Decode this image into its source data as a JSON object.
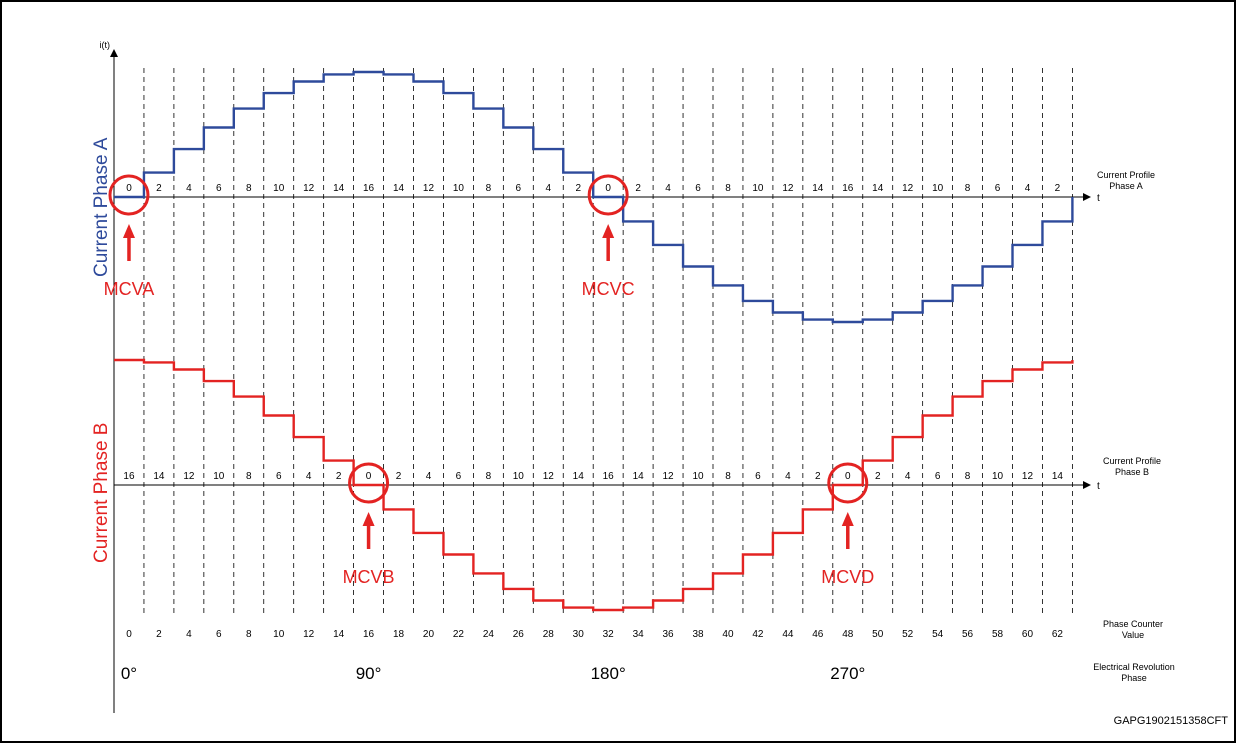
{
  "axes": {
    "y_label": "i(t)",
    "t_label": "t"
  },
  "phase_a": {
    "title": "Current Phase A",
    "profile_label_line1": "Current Profile",
    "profile_label_line2": "Phase A",
    "color": "#2e4a9b",
    "markers": [
      {
        "label": "MCVA",
        "step": 0
      },
      {
        "label": "MCVC",
        "step": 16
      }
    ]
  },
  "phase_b": {
    "title": "Current Phase B",
    "profile_label_line1": "Current Profile",
    "profile_label_line2": "Phase B",
    "color": "#e32322",
    "markers": [
      {
        "label": "MCVB",
        "step": 8
      },
      {
        "label": "MCVD",
        "step": 24
      }
    ]
  },
  "phase_counter": {
    "label_line1": "Phase Counter",
    "label_line2": "Value",
    "values": [
      "0",
      "2",
      "4",
      "6",
      "8",
      "10",
      "12",
      "14",
      "16",
      "18",
      "20",
      "22",
      "24",
      "26",
      "28",
      "30",
      "32",
      "34",
      "36",
      "38",
      "40",
      "42",
      "44",
      "46",
      "48",
      "50",
      "52",
      "54",
      "56",
      "58",
      "60",
      "62"
    ]
  },
  "electrical_phase": {
    "label_line1": "Electrical Revolution",
    "label_line2": "Phase",
    "angles": [
      {
        "label": "0°",
        "step": 0
      },
      {
        "label": "90°",
        "step": 8
      },
      {
        "label": "180°",
        "step": 16
      },
      {
        "label": "270°",
        "step": 24
      }
    ]
  },
  "chart_data": {
    "type": "line",
    "x": [
      0,
      2,
      4,
      6,
      8,
      10,
      12,
      14,
      16,
      18,
      20,
      22,
      24,
      26,
      28,
      30,
      32,
      34,
      36,
      38,
      40,
      42,
      44,
      46,
      48,
      50,
      52,
      54,
      56,
      58,
      60,
      62
    ],
    "series": [
      {
        "name": "Current Phase A",
        "values": [
          0,
          0.195,
          0.383,
          0.556,
          0.707,
          0.831,
          0.924,
          0.981,
          1,
          0.981,
          0.924,
          0.831,
          0.707,
          0.556,
          0.383,
          0.195,
          0,
          -0.195,
          -0.383,
          -0.556,
          -0.707,
          -0.831,
          -0.924,
          -0.981,
          -1,
          -0.981,
          -0.924,
          -0.831,
          -0.707,
          -0.556,
          -0.383,
          -0.195
        ],
        "step_labels": [
          "0",
          "2",
          "4",
          "6",
          "8",
          "10",
          "12",
          "14",
          "16",
          "14",
          "12",
          "10",
          "8",
          "6",
          "4",
          "2",
          "0",
          "2",
          "4",
          "6",
          "8",
          "10",
          "12",
          "14",
          "16",
          "14",
          "12",
          "10",
          "8",
          "6",
          "4",
          "2"
        ]
      },
      {
        "name": "Current Phase B",
        "values": [
          1,
          0.981,
          0.924,
          0.831,
          0.707,
          0.556,
          0.383,
          0.195,
          0,
          -0.195,
          -0.383,
          -0.556,
          -0.707,
          -0.831,
          -0.924,
          -0.981,
          -1,
          -0.981,
          -0.924,
          -0.831,
          -0.707,
          -0.556,
          -0.383,
          -0.195,
          0,
          0.195,
          0.383,
          0.556,
          0.707,
          0.831,
          0.924,
          0.981
        ],
        "step_labels": [
          "16",
          "14",
          "12",
          "10",
          "8",
          "6",
          "4",
          "2",
          "0",
          "2",
          "4",
          "6",
          "8",
          "10",
          "12",
          "14",
          "16",
          "14",
          "12",
          "10",
          "8",
          "6",
          "4",
          "2",
          "0",
          "2",
          "4",
          "6",
          "8",
          "10",
          "12",
          "14"
        ]
      }
    ]
  },
  "figure_code": "GAPG1902151358CFT"
}
